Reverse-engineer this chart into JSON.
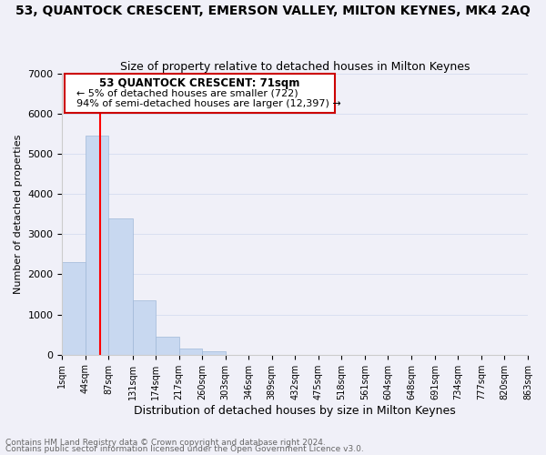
{
  "title": "53, QUANTOCK CRESCENT, EMERSON VALLEY, MILTON KEYNES, MK4 2AQ",
  "subtitle": "Size of property relative to detached houses in Milton Keynes",
  "xlabel": "Distribution of detached houses by size in Milton Keynes",
  "ylabel": "Number of detached properties",
  "bar_color": "#c8d8f0",
  "bar_edge_color": "#a0b8d8",
  "vline_x": 71,
  "vline_color": "red",
  "annotation_title": "53 QUANTOCK CRESCENT: 71sqm",
  "annotation_line1": "← 5% of detached houses are smaller (722)",
  "annotation_line2": "94% of semi-detached houses are larger (12,397) →",
  "annotation_box_color": "white",
  "annotation_box_edge": "#cc0000",
  "footnote1": "Contains HM Land Registry data © Crown copyright and database right 2024.",
  "footnote2": "Contains public sector information licensed under the Open Government Licence v3.0.",
  "ylim": [
    0,
    7000
  ],
  "yticks": [
    0,
    1000,
    2000,
    3000,
    4000,
    5000,
    6000,
    7000
  ],
  "bin_edges": [
    1,
    44,
    87,
    131,
    174,
    217,
    260,
    303,
    346,
    389,
    432,
    475,
    518,
    561,
    604,
    648,
    691,
    734,
    777,
    820,
    863
  ],
  "bin_labels": [
    "1sqm",
    "44sqm",
    "87sqm",
    "131sqm",
    "174sqm",
    "217sqm",
    "260sqm",
    "303sqm",
    "346sqm",
    "389sqm",
    "432sqm",
    "475sqm",
    "518sqm",
    "561sqm",
    "604sqm",
    "648sqm",
    "691sqm",
    "734sqm",
    "777sqm",
    "820sqm",
    "863sqm"
  ],
  "bar_heights": [
    2300,
    5450,
    3400,
    1350,
    440,
    160,
    90,
    0,
    0,
    0,
    0,
    0,
    0,
    0,
    0,
    0,
    0,
    0,
    0,
    0
  ],
  "background_color": "#f0f0f8"
}
